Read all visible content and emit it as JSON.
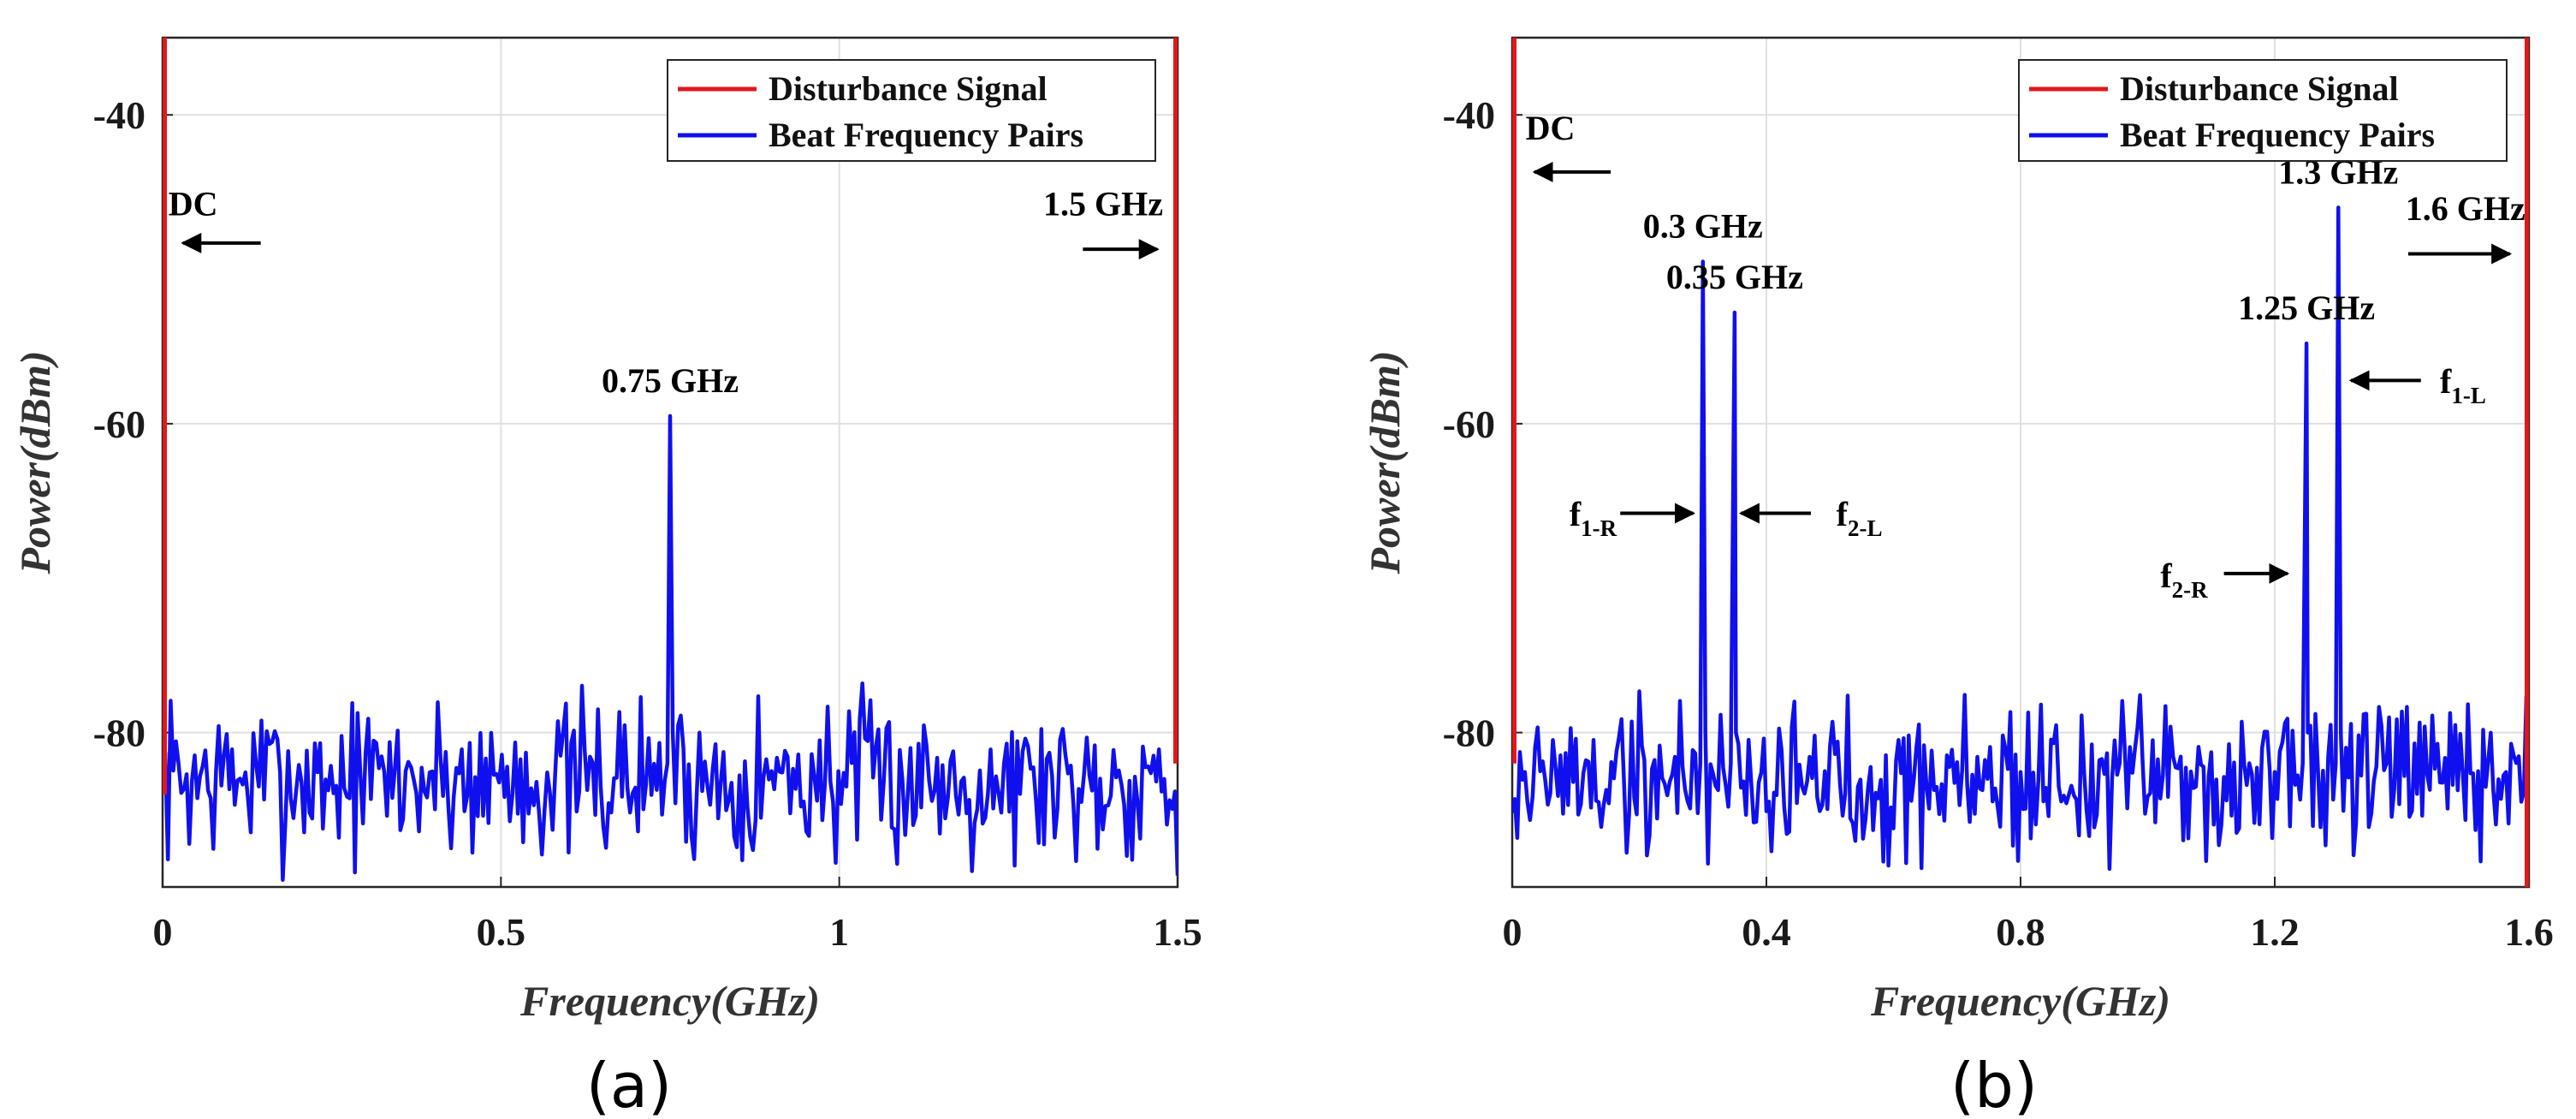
{
  "colors": {
    "disturbance": "#e3171b",
    "beat": "#1010ee",
    "grid": "#e0e0e0",
    "axis": "#262626",
    "annotation": "#000000"
  },
  "chart_data": [
    {
      "type": "line",
      "caption": "(a)",
      "xlabel": "Frequency(GHz)",
      "ylabel": "Power(dBm)",
      "xlim": [
        0,
        1.5
      ],
      "ylim": [
        -90,
        -35
      ],
      "xticks": [
        0,
        0.5,
        1,
        1.5
      ],
      "xtick_labels": [
        "0",
        "0.5",
        "1",
        "1.5"
      ],
      "yticks": [
        -80,
        -60,
        -40
      ],
      "ytick_labels": [
        "-80",
        "-60",
        "-40"
      ],
      "grid": true,
      "legend_position": "top-right",
      "series": [
        {
          "name": "Disturbance Signal",
          "color_key": "disturbance",
          "points": [
            [
              0,
              -84
            ],
            [
              0,
              -35
            ],
            [
              1.5,
              -35
            ],
            [
              1.5,
              -82
            ]
          ]
        },
        {
          "name": "Beat Frequency Pairs",
          "color_key": "beat",
          "noise_seed": 7,
          "noise_floor": -83,
          "noise_spread": 3.2,
          "num_points": 380,
          "peaks": [
            {
              "x": 0.75,
              "y": -59.5,
              "label": "0.75 GHz"
            }
          ]
        }
      ],
      "annotations": [
        {
          "text": "DC",
          "x": 0.045,
          "y": -46.5,
          "arrow": {
            "from": [
              0.145,
              -48.3
            ],
            "to": [
              0.03,
              -48.3
            ]
          }
        },
        {
          "text": "1.5 GHz",
          "x": 1.39,
          "y": -46.5,
          "arrow": {
            "from": [
              1.36,
              -48.7
            ],
            "to": [
              1.47,
              -48.7
            ]
          }
        }
      ]
    },
    {
      "type": "line",
      "caption": "(b)",
      "xlabel": "Frequency(GHz)",
      "ylabel": "Power(dBm)",
      "xlim": [
        0,
        1.6
      ],
      "ylim": [
        -90,
        -35
      ],
      "xticks": [
        0,
        0.4,
        0.8,
        1.2,
        1.6
      ],
      "xtick_labels": [
        "0",
        "0.4",
        "0.8",
        "1.2",
        "1.6"
      ],
      "yticks": [
        -80,
        -60,
        -40
      ],
      "ytick_labels": [
        "-80",
        "-60",
        "-40"
      ],
      "grid": true,
      "legend_position": "top-right",
      "series": [
        {
          "name": "Disturbance Signal",
          "color_key": "disturbance",
          "points": [
            [
              0,
              -82
            ],
            [
              0,
              -35
            ],
            [
              1.6,
              -35
            ],
            [
              1.6,
              -90
            ]
          ]
        },
        {
          "name": "Beat Frequency Pairs",
          "color_key": "beat",
          "noise_seed": 19,
          "noise_floor": -83,
          "noise_spread": 3.2,
          "num_points": 400,
          "peaks": [
            {
              "x": 0.3,
              "y": -49.5,
              "label": "0.3 GHz"
            },
            {
              "x": 0.35,
              "y": -52.8,
              "label": "0.35 GHz"
            },
            {
              "x": 1.25,
              "y": -54.8,
              "label": "1.25 GHz"
            },
            {
              "x": 1.3,
              "y": -46.0,
              "label": "1.3 GHz"
            }
          ]
        }
      ],
      "annotations": [
        {
          "text": "DC",
          "x": 0.06,
          "y": -41.6,
          "arrow": {
            "from": [
              0.155,
              -43.7
            ],
            "to": [
              0.035,
              -43.7
            ]
          }
        },
        {
          "text": "1.6 GHz",
          "x": 1.5,
          "y": -46.8,
          "arrow": {
            "from": [
              1.41,
              -49.0
            ],
            "to": [
              1.57,
              -49.0
            ]
          }
        }
      ],
      "f_labels": [
        {
          "sym": "f",
          "sub": "1-R",
          "x": 0.09,
          "y": -66.6,
          "arrow": {
            "from": [
              0.17,
              -65.8
            ],
            "to": [
              0.285,
              -65.8
            ]
          }
        },
        {
          "sym": "f",
          "sub": "2-L",
          "x": 0.51,
          "y": -66.6,
          "arrow": {
            "from": [
              0.47,
              -65.8
            ],
            "to": [
              0.36,
              -65.8
            ]
          }
        },
        {
          "sym": "f",
          "sub": "1-L",
          "x": 1.46,
          "y": -58.0,
          "arrow": {
            "from": [
              1.43,
              -57.2
            ],
            "to": [
              1.32,
              -57.2
            ]
          }
        },
        {
          "sym": "f",
          "sub": "2-R",
          "x": 1.02,
          "y": -70.6,
          "arrow": {
            "from": [
              1.12,
              -69.7
            ],
            "to": [
              1.22,
              -69.7
            ]
          }
        }
      ]
    }
  ]
}
